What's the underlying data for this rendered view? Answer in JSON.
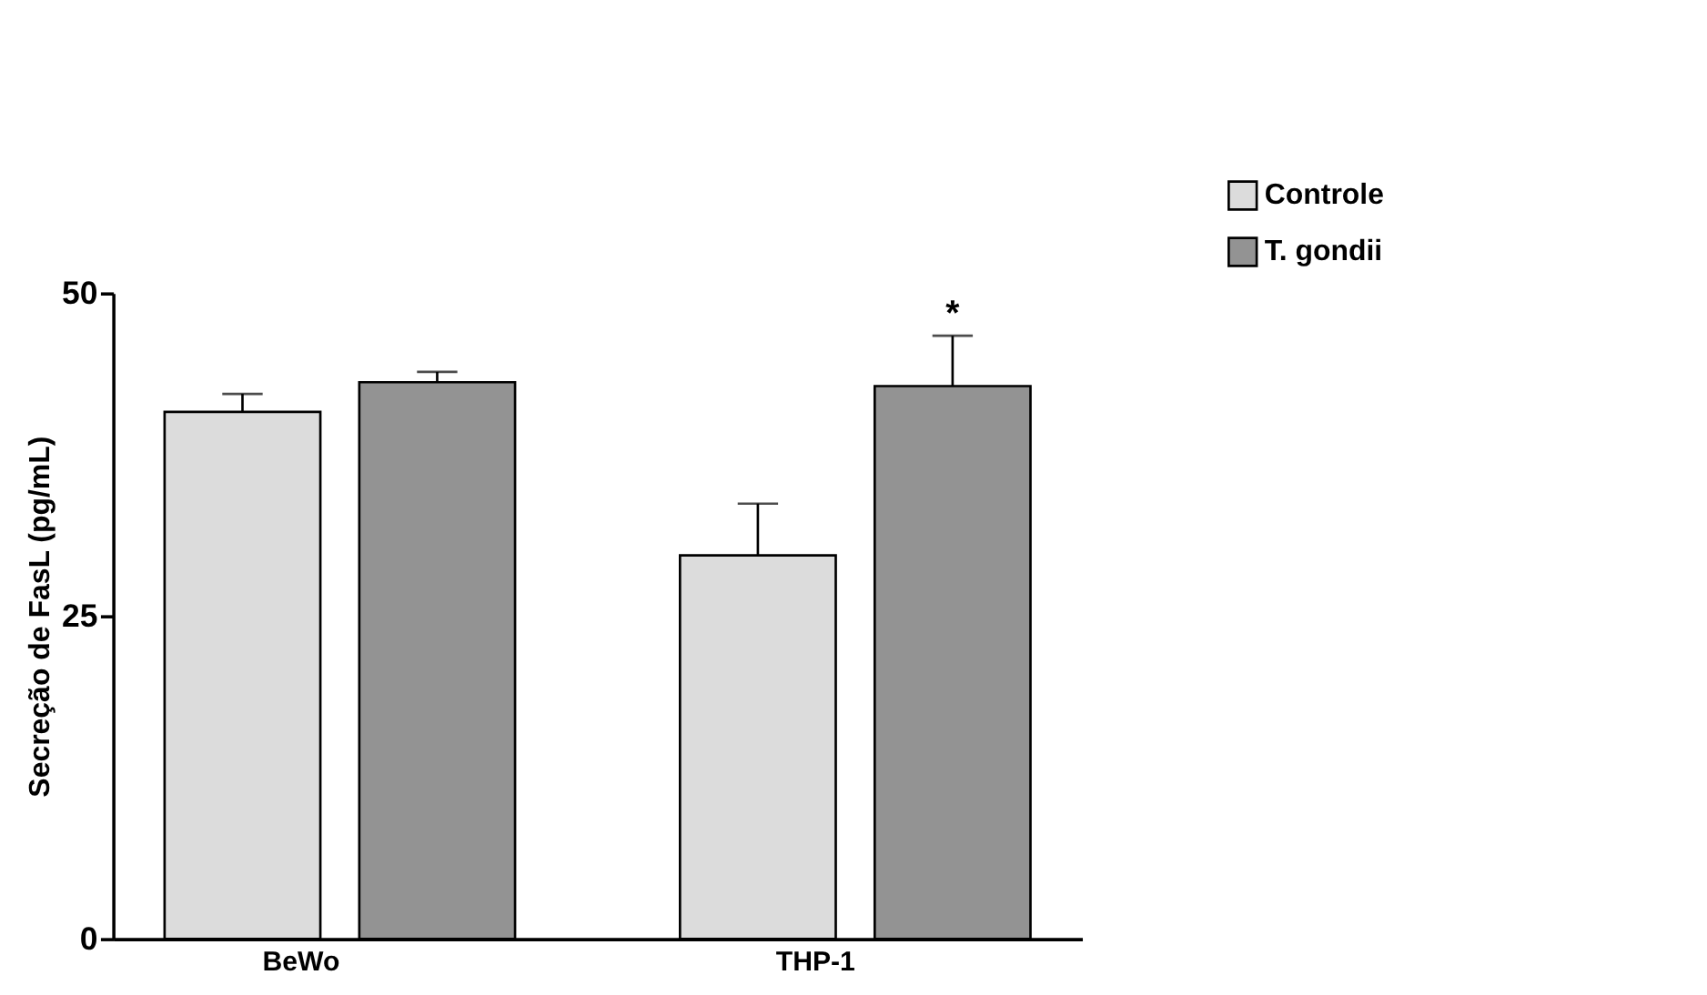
{
  "chart_data": {
    "type": "bar",
    "ylabel": "Secreção de FasL (pg/mL)",
    "categories": [
      "BeWo",
      "THP-1"
    ],
    "series": [
      {
        "name": "Controle",
        "color": "#dcdcdc",
        "values": [
          40.8,
          29.7
        ],
        "errors": [
          [
            40.8,
            42.2
          ],
          [
            29.7,
            33.7
          ]
        ]
      },
      {
        "name": "T. gondii",
        "color": "#939393",
        "values": [
          43.1,
          42.8
        ],
        "errors": [
          [
            43.1,
            43.9
          ],
          [
            42.8,
            46.7
          ]
        ]
      }
    ],
    "ylim": [
      0,
      50
    ],
    "yticks": [
      0,
      25,
      50
    ],
    "grid": false,
    "legend": "top right",
    "annotations": [
      "*"
    ]
  }
}
